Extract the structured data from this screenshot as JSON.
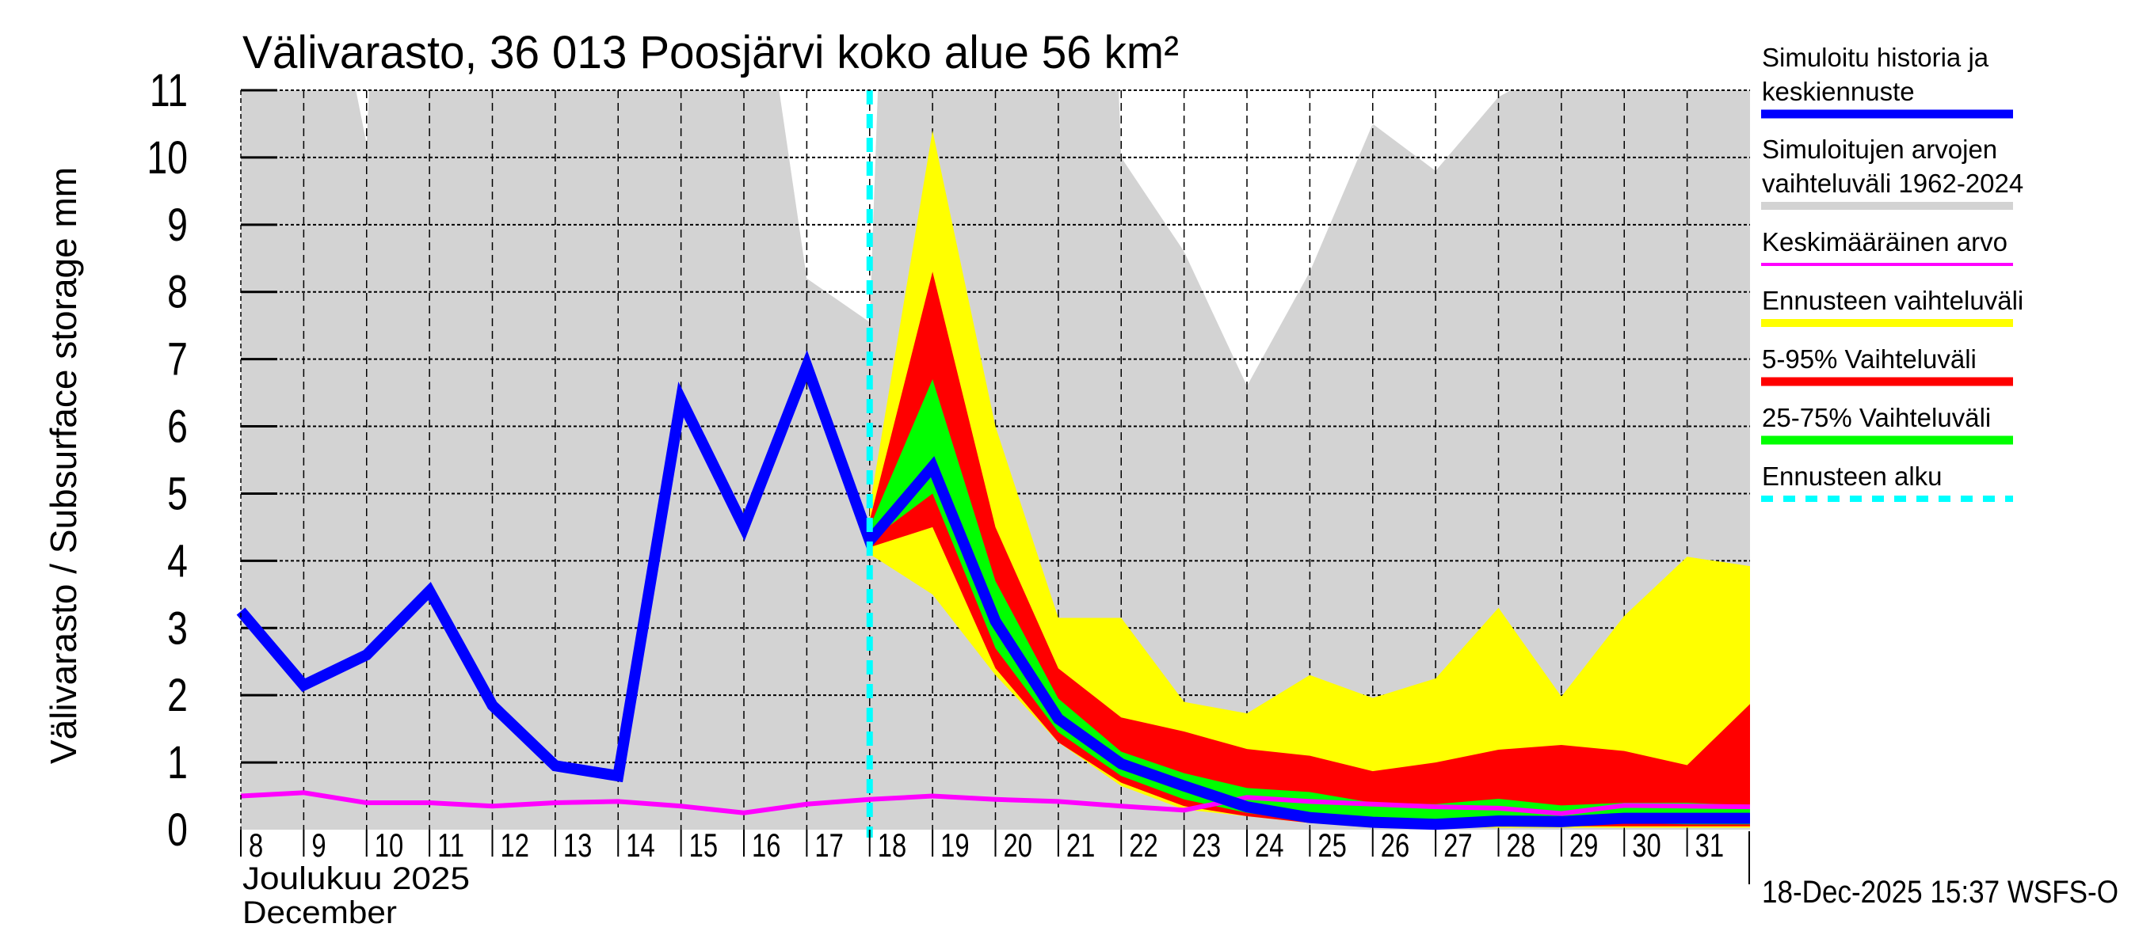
{
  "chart_data": {
    "type": "area",
    "title": "Välivarasto, 36 013 Poosjärvi koko alue 56 km²",
    "ylabel": "Välivarasto / Subsurface storage  mm",
    "xlabel_line1": "Joulukuu  2025",
    "xlabel_line2": "December",
    "timestamp": "18-Dec-2025 15:37 WSFS-O",
    "xlim": [
      8,
      32
    ],
    "ylim": [
      0,
      11
    ],
    "yticks": [
      "0",
      "1",
      "2",
      "3",
      "4",
      "5",
      "6",
      "7",
      "8",
      "9",
      "10",
      "11"
    ],
    "xticks": [
      "8",
      "9",
      "10",
      "11",
      "12",
      "13",
      "14",
      "15",
      "16",
      "17",
      "18",
      "19",
      "20",
      "21",
      "22",
      "23",
      "24",
      "25",
      "26",
      "27",
      "28",
      "29",
      "30",
      "31"
    ],
    "grid": true,
    "forecast_start_day": 18,
    "colors": {
      "history": "#0000ff",
      "range_hist": "#d3d3d3",
      "mean": "#ff00ff",
      "ens_range": "#ffff00",
      "p5_95": "#ff0000",
      "p25_75": "#00ff00",
      "forecast_start": "#00ffff"
    },
    "legend": [
      {
        "key": "history",
        "label": "Simuloitu historia ja keskiennuste",
        "lines": [
          "Simuloitu historia ja",
          "keskiennuste"
        ]
      },
      {
        "key": "range_hist",
        "label": "Simuloitujen arvojen vaihteluväli 1962-2024",
        "lines": [
          "Simuloitujen arvojen",
          "vaihteluväli 1962-2024"
        ]
      },
      {
        "key": "mean",
        "label": "Keskimääräinen arvo",
        "lines": [
          "Keskimääräinen arvo"
        ]
      },
      {
        "key": "ens_range",
        "label": "Ennusteen vaihteluväli",
        "lines": [
          "Ennusteen vaihteluväli"
        ]
      },
      {
        "key": "p5_95",
        "label": "5-95% Vaihteluväli",
        "lines": [
          "5-95% Vaihteluväli"
        ]
      },
      {
        "key": "p25_75",
        "label": "25-75% Vaihteluväli",
        "lines": [
          "25-75% Vaihteluväli"
        ]
      },
      {
        "key": "forecast_start",
        "label": "Ennusteen alku",
        "lines": [
          "Ennusteen alku"
        ]
      }
    ],
    "hist_range_max": {
      "x": [
        8,
        9.83,
        10,
        10.04,
        16.56,
        17,
        18,
        18.13,
        21.96,
        22,
        23,
        24,
        25,
        26,
        27,
        28,
        28.2,
        32
      ],
      "y": [
        11,
        11,
        10.2,
        11,
        11,
        8.2,
        7.55,
        11,
        11,
        10.0,
        8.6,
        6.6,
        8.3,
        10.5,
        9.8,
        10.9,
        11,
        11
      ]
    },
    "ens_range": {
      "x": [
        18,
        19,
        20,
        21,
        22,
        23,
        24,
        25,
        26,
        27,
        28,
        29,
        30,
        31,
        32
      ],
      "upper": [
        4.8,
        10.4,
        6.0,
        3.15,
        3.15,
        1.9,
        1.73,
        2.3,
        1.96,
        2.25,
        3.3,
        1.98,
        3.18,
        4.06,
        3.92
      ],
      "lower": [
        4.1,
        3.5,
        2.3,
        1.3,
        0.65,
        0.3,
        0.2,
        0.1,
        0.03,
        0.03,
        0.03,
        0.03,
        0.03,
        0.03,
        0.03
      ]
    },
    "p5_95": {
      "x": [
        18,
        19,
        20,
        21,
        22,
        23,
        24,
        25,
        26,
        27,
        28,
        29,
        30,
        31,
        32
      ],
      "upper": [
        4.6,
        8.3,
        4.5,
        2.4,
        1.67,
        1.46,
        1.2,
        1.1,
        0.87,
        1.0,
        1.19,
        1.26,
        1.17,
        0.96,
        1.87
      ],
      "lower": [
        4.2,
        4.5,
        2.4,
        1.3,
        0.7,
        0.35,
        0.2,
        0.1,
        0.05,
        0.05,
        0.05,
        0.05,
        0.05,
        0.05,
        0.05
      ]
    },
    "p25_75": {
      "x": [
        18,
        19,
        20,
        21,
        22,
        23,
        24,
        25,
        26,
        27,
        28,
        29,
        30,
        31,
        32
      ],
      "upper": [
        4.5,
        6.7,
        3.7,
        1.95,
        1.16,
        0.84,
        0.62,
        0.56,
        0.4,
        0.38,
        0.46,
        0.36,
        0.4,
        0.4,
        0.36
      ],
      "lower": [
        4.3,
        5.0,
        2.7,
        1.45,
        0.8,
        0.45,
        0.25,
        0.12,
        0.06,
        0.05,
        0.06,
        0.06,
        0.1,
        0.08,
        0.08
      ]
    },
    "history_median": {
      "x": [
        8,
        9,
        10,
        11,
        12,
        13,
        14,
        15,
        16,
        17,
        18,
        19,
        20,
        21,
        22,
        23,
        24,
        25,
        26,
        27,
        28,
        29,
        30,
        31,
        32
      ],
      "y": [
        3.25,
        2.15,
        2.6,
        3.55,
        1.85,
        0.95,
        0.8,
        6.4,
        4.5,
        6.9,
        4.3,
        5.4,
        3.1,
        1.65,
        0.98,
        0.65,
        0.34,
        0.18,
        0.11,
        0.08,
        0.13,
        0.12,
        0.17,
        0.17,
        0.17
      ]
    },
    "mean": {
      "x": [
        8,
        9,
        10,
        11,
        12,
        13,
        14,
        15,
        16,
        17,
        18,
        19,
        20,
        21,
        22,
        23,
        24,
        25,
        26,
        27,
        28,
        29,
        30,
        31,
        32
      ],
      "y": [
        0.5,
        0.55,
        0.4,
        0.4,
        0.35,
        0.4,
        0.42,
        0.35,
        0.25,
        0.38,
        0.45,
        0.5,
        0.45,
        0.42,
        0.35,
        0.29,
        0.48,
        0.42,
        0.38,
        0.34,
        0.32,
        0.24,
        0.36,
        0.35,
        0.34
      ]
    }
  }
}
